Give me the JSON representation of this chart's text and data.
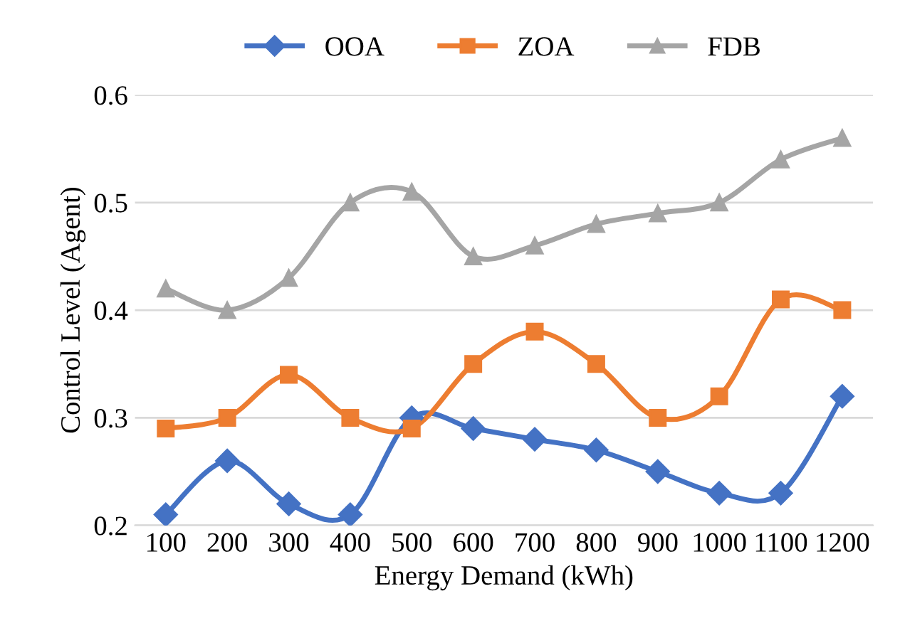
{
  "chart_data": {
    "type": "line",
    "xlabel": "Energy Demand (kWh)",
    "ylabel": "Control Level (Agent)",
    "categories": [
      "100",
      "200",
      "300",
      "400",
      "500",
      "600",
      "700",
      "800",
      "900",
      "1000",
      "1100",
      "1200"
    ],
    "series": [
      {
        "name": "OOA",
        "color": "#4472c4",
        "marker": "diamond",
        "values": [
          0.21,
          0.26,
          0.22,
          0.21,
          0.3,
          0.29,
          0.28,
          0.27,
          0.25,
          0.23,
          0.23,
          0.32
        ]
      },
      {
        "name": "ZOA",
        "color": "#ed7d31",
        "marker": "square",
        "values": [
          0.29,
          0.3,
          0.34,
          0.3,
          0.29,
          0.35,
          0.38,
          0.35,
          0.3,
          0.32,
          0.41,
          0.4
        ]
      },
      {
        "name": "FDB",
        "color": "#a5a5a5",
        "marker": "triangle",
        "values": [
          0.42,
          0.4,
          0.43,
          0.5,
          0.51,
          0.45,
          0.46,
          0.48,
          0.49,
          0.5,
          0.54,
          0.56
        ]
      }
    ],
    "ylim": [
      0.2,
      0.6
    ],
    "yticks": [
      {
        "value": 0.2,
        "label": "0.2"
      },
      {
        "value": 0.3,
        "label": "0.3"
      },
      {
        "value": 0.4,
        "label": "0.4"
      },
      {
        "value": 0.5,
        "label": "0.5"
      },
      {
        "value": 0.6,
        "label": "0.6"
      }
    ],
    "grid": "y",
    "legend": "top",
    "line_style": "solid"
  }
}
